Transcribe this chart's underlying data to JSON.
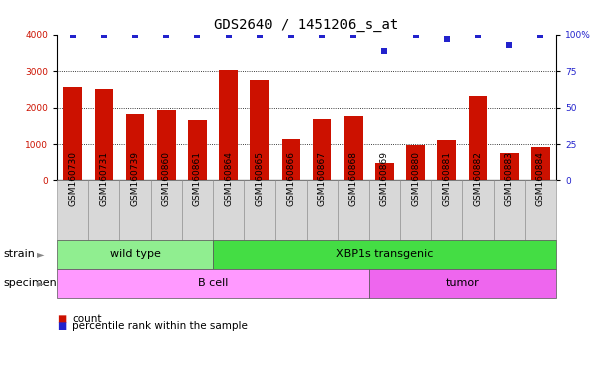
{
  "title": "GDS2640 / 1451206_s_at",
  "samples": [
    "GSM160730",
    "GSM160731",
    "GSM160739",
    "GSM160860",
    "GSM160861",
    "GSM160864",
    "GSM160865",
    "GSM160866",
    "GSM160867",
    "GSM160868",
    "GSM160869",
    "GSM160880",
    "GSM160881",
    "GSM160882",
    "GSM160883",
    "GSM160884"
  ],
  "counts": [
    2560,
    2500,
    1820,
    1930,
    1660,
    3020,
    2760,
    1130,
    1680,
    1760,
    480,
    970,
    1120,
    2320,
    760,
    920
  ],
  "percentiles": [
    100,
    100,
    100,
    100,
    100,
    100,
    100,
    100,
    100,
    100,
    89,
    100,
    97,
    100,
    93,
    100
  ],
  "bar_color": "#CC1100",
  "dot_color": "#2222CC",
  "ylim_left": [
    0,
    4000
  ],
  "ylim_right": [
    0,
    100
  ],
  "yticks_left": [
    0,
    1000,
    2000,
    3000,
    4000
  ],
  "yticks_right": [
    0,
    25,
    50,
    75,
    100
  ],
  "grid_values": [
    1000,
    2000,
    3000
  ],
  "strain_groups": [
    {
      "label": "wild type",
      "start": 0,
      "end": 5,
      "color": "#90EE90"
    },
    {
      "label": "XBP1s transgenic",
      "start": 5,
      "end": 16,
      "color": "#44DD44"
    }
  ],
  "specimen_groups": [
    {
      "label": "B cell",
      "start": 0,
      "end": 10,
      "color": "#FF99FF"
    },
    {
      "label": "tumor",
      "start": 10,
      "end": 16,
      "color": "#EE66EE"
    }
  ],
  "title_fontsize": 10,
  "tick_fontsize": 6.5,
  "label_fontsize": 8,
  "background_color": "#FFFFFF",
  "plot_bg_color": "#FFFFFF"
}
